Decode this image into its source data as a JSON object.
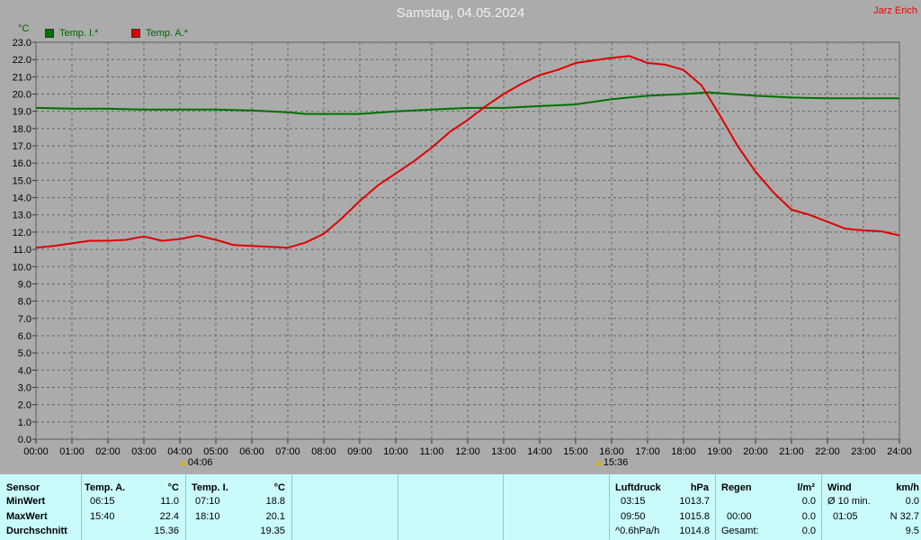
{
  "title": "Samstag, 04.05.2024",
  "author": "Jarz Erich",
  "unit": "°C",
  "colors": {
    "series_inside": "#007000",
    "series_outside": "#e00000",
    "background": "#ababab",
    "grid": "#666666",
    "table_bg": "#c9fbfb"
  },
  "legend": [
    {
      "label": "Temp. I.*",
      "color": "#007000"
    },
    {
      "label": "Temp. A.*",
      "color": "#e00000"
    }
  ],
  "markers": [
    {
      "label": "04:06"
    },
    {
      "label": "15:36"
    }
  ],
  "chart_data": {
    "type": "line",
    "title": "Samstag, 04.05.2024",
    "xlabel": "",
    "ylabel": "°C",
    "xlim": [
      0,
      24
    ],
    "ylim": [
      0,
      23
    ],
    "grid": true,
    "legend_position": "top-left",
    "x_ticks": [
      "00:00",
      "01:00",
      "02:00",
      "03:00",
      "04:00",
      "05:00",
      "06:00",
      "07:00",
      "08:00",
      "09:00",
      "10:00",
      "11:00",
      "12:00",
      "13:00",
      "14:00",
      "15:00",
      "16:00",
      "17:00",
      "18:00",
      "19:00",
      "20:00",
      "21:00",
      "22:00",
      "23:00",
      "24:00"
    ],
    "y_ticks": [
      "0.0",
      "1.0",
      "2.0",
      "3.0",
      "4.0",
      "5.0",
      "6.0",
      "7.0",
      "8.0",
      "9.0",
      "10.0",
      "11.0",
      "12.0",
      "13.0",
      "14.0",
      "15.0",
      "16.0",
      "17.0",
      "18.0",
      "19.0",
      "20.0",
      "21.0",
      "22.0",
      "23.0"
    ],
    "series": [
      {
        "name": "Temp. I.*",
        "color": "#007000",
        "x": [
          0,
          1,
          2,
          3,
          4,
          5,
          6,
          7,
          7.5,
          8,
          9,
          10,
          11,
          12,
          13,
          14,
          15,
          16,
          17,
          18,
          18.7,
          19,
          20,
          21,
          22,
          23,
          24
        ],
        "y": [
          19.2,
          19.15,
          19.15,
          19.1,
          19.1,
          19.1,
          19.05,
          18.95,
          18.85,
          18.85,
          18.85,
          19.0,
          19.1,
          19.2,
          19.2,
          19.3,
          19.4,
          19.7,
          19.9,
          20.0,
          20.1,
          20.05,
          19.9,
          19.8,
          19.75,
          19.75,
          19.75
        ]
      },
      {
        "name": "Temp. A.*",
        "color": "#e00000",
        "x": [
          0,
          0.5,
          1,
          1.5,
          2,
          2.5,
          3,
          3.5,
          4,
          4.5,
          5,
          5.5,
          6,
          6.5,
          7,
          7.5,
          8,
          8.5,
          9,
          9.5,
          10,
          10.5,
          11,
          11.5,
          12,
          12.5,
          13,
          13.5,
          14,
          14.5,
          15,
          15.5,
          16,
          16.5,
          17,
          17.5,
          18,
          18.5,
          19,
          19.5,
          20,
          20.5,
          21,
          21.5,
          22,
          22.5,
          23,
          23.5,
          24
        ],
        "y": [
          11.1,
          11.2,
          11.35,
          11.5,
          11.5,
          11.55,
          11.75,
          11.5,
          11.6,
          11.8,
          11.55,
          11.25,
          11.2,
          11.15,
          11.1,
          11.4,
          11.9,
          12.8,
          13.8,
          14.7,
          15.4,
          16.1,
          16.9,
          17.8,
          18.5,
          19.3,
          20.0,
          20.6,
          21.1,
          21.4,
          21.8,
          21.95,
          22.1,
          22.2,
          21.8,
          21.7,
          21.4,
          20.5,
          18.8,
          17.0,
          15.5,
          14.3,
          13.3,
          13.0,
          12.6,
          12.2,
          12.1,
          12.05,
          11.8
        ]
      }
    ]
  },
  "table": {
    "sensor": {
      "header": "Sensor",
      "rows": [
        "MinWert",
        "MaxWert",
        "Durchschnitt"
      ]
    },
    "temp_a": {
      "header": "Temp. A.",
      "unit": "°C",
      "min_time": "06:15",
      "min_val": "11.0",
      "max_time": "15:40",
      "max_val": "22.4",
      "avg": "15.36"
    },
    "temp_i": {
      "header": "Temp. I.",
      "unit": "°C",
      "min_time": "07:10",
      "min_val": "18.8",
      "max_time": "18:10",
      "max_val": "20.1",
      "avg": "19.35"
    },
    "pressure": {
      "header": "Luftdruck",
      "unit": "hPa",
      "r1_time": "03:15",
      "r1_val": "1013.7",
      "r2_time": "09:50",
      "r2_val": "1015.8",
      "r3_label": "^0.6hPa/h",
      "r3_val": "1014.8"
    },
    "rain": {
      "header": "Regen",
      "unit": "l/m²",
      "r1_val": "0.0",
      "r2_time": "00:00",
      "r2_val": "0.0",
      "r3_label": "Gesamt:",
      "r3_val": "0.0"
    },
    "wind": {
      "header": "Wind",
      "unit": "km/h",
      "r1_label": "Ø 10 min.",
      "r1_val": "0.0",
      "r2_time": "01:05",
      "r2_val": "N 32.7",
      "r3_val": "9.5"
    }
  }
}
